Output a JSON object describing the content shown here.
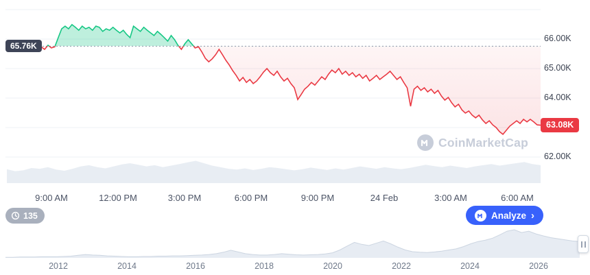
{
  "price_chart": {
    "baseline_badge": "65.76K",
    "current_badge": "63.08K",
    "y_axis_labels": [
      "66.00K",
      "65.00K",
      "64.00K",
      "62.00K"
    ],
    "x_axis_labels": [
      "9:00 AM",
      "12:00 PM",
      "3:00 PM",
      "6:00 PM",
      "9:00 PM",
      "24 Feb",
      "3:00 AM",
      "6:00 AM"
    ],
    "watermark_text": "CoinMarketCap"
  },
  "controls": {
    "history_badge_count": "135",
    "analyze_button_label": "Analyze"
  },
  "range_selector": {
    "year_labels": [
      "2012",
      "2014",
      "2016",
      "2018",
      "2020",
      "2022",
      "2024",
      "2026"
    ]
  },
  "colors": {
    "gain_green": "#16c784",
    "loss_red": "#ea3943",
    "analyze_blue": "#3861fb",
    "baseline_badge_bg": "#3e4457",
    "grid_line": "#eef1f6",
    "volume_fill": "#e8edf3",
    "timeline_fill": "#e7ecf3",
    "timeline_stroke": "#ccd5e1",
    "dotted_line": "#8b95a8"
  },
  "chart_data": [
    {
      "type": "line",
      "name": "price-24h",
      "title": "",
      "x_tick_labels": [
        "9:00 AM",
        "12:00 PM",
        "3:00 PM",
        "6:00 PM",
        "9:00 PM",
        "24 Feb",
        "3:00 AM",
        "6:00 AM"
      ],
      "y_gridlines": [
        67,
        66,
        65,
        64,
        63,
        62
      ],
      "y_tick_labels_visible": [
        "66.00K",
        "65.00K",
        "64.00K",
        "62.00K"
      ],
      "ylim": [
        61.85,
        67.15
      ],
      "baseline_value": 65.76,
      "last_value": 63.08,
      "grid": "horizontal",
      "legend": "off",
      "values_unit": "thousand USD",
      "values": [
        65.7,
        65.74,
        65.65,
        65.79,
        65.7,
        65.74,
        66.05,
        66.35,
        66.44,
        66.35,
        66.49,
        66.4,
        66.3,
        66.44,
        66.35,
        66.4,
        66.3,
        66.44,
        66.4,
        66.26,
        66.35,
        66.3,
        66.4,
        66.3,
        66.21,
        66.3,
        66.16,
        66.05,
        66.44,
        66.35,
        66.26,
        66.4,
        66.3,
        66.21,
        66.12,
        66.26,
        66.16,
        66.05,
        65.93,
        66.12,
        65.98,
        65.79,
        65.65,
        65.84,
        65.98,
        65.84,
        65.7,
        65.74,
        65.56,
        65.35,
        65.23,
        65.33,
        65.47,
        65.65,
        65.47,
        65.28,
        65.12,
        64.93,
        64.77,
        64.58,
        64.7,
        64.53,
        64.63,
        64.49,
        64.58,
        64.72,
        64.88,
        65.0,
        64.86,
        64.77,
        64.91,
        64.72,
        64.58,
        64.67,
        64.49,
        64.35,
        63.95,
        64.12,
        64.3,
        64.4,
        64.53,
        64.44,
        64.58,
        64.72,
        64.63,
        64.81,
        64.95,
        64.86,
        65.0,
        64.81,
        64.91,
        64.77,
        64.86,
        64.72,
        64.81,
        64.67,
        64.77,
        64.58,
        64.67,
        64.77,
        64.63,
        64.72,
        64.81,
        64.91,
        64.77,
        64.63,
        64.72,
        64.53,
        64.35,
        63.72,
        64.3,
        64.4,
        64.26,
        64.35,
        64.21,
        64.3,
        64.16,
        64.26,
        64.07,
        63.93,
        64.02,
        63.84,
        63.7,
        63.79,
        63.6,
        63.49,
        63.56,
        63.42,
        63.33,
        63.42,
        63.26,
        63.14,
        63.23,
        63.09,
        63.0,
        62.86,
        62.77,
        62.91,
        63.05,
        63.14,
        63.23,
        63.14,
        63.28,
        63.19,
        63.28,
        63.19,
        63.09,
        63.08
      ]
    },
    {
      "type": "area",
      "name": "volume",
      "values_normalized": [
        0.35,
        0.3,
        0.32,
        0.38,
        0.36,
        0.4,
        0.34,
        0.31,
        0.36,
        0.42,
        0.45,
        0.4,
        0.37,
        0.42,
        0.47,
        0.5,
        0.46,
        0.42,
        0.45,
        0.4,
        0.44,
        0.48,
        0.52,
        0.56,
        0.5,
        0.44,
        0.4,
        0.36,
        0.34,
        0.37,
        0.33,
        0.36,
        0.4,
        0.38,
        0.35,
        0.32,
        0.35,
        0.39,
        0.36,
        0.33,
        0.37,
        0.34,
        0.38,
        0.42,
        0.39,
        0.36,
        0.4,
        0.37,
        0.35,
        0.38,
        0.42,
        0.46,
        0.43,
        0.4,
        0.44,
        0.41,
        0.38,
        0.42,
        0.45,
        0.48,
        0.44,
        0.47,
        0.5,
        0.53,
        0.48,
        0.45
      ]
    },
    {
      "type": "area",
      "name": "range-selector-history",
      "x_tick_labels": [
        "2012",
        "2014",
        "2016",
        "2018",
        "2020",
        "2022",
        "2024",
        "2026"
      ],
      "values_normalized": [
        0.02,
        0.02,
        0.03,
        0.03,
        0.03,
        0.04,
        0.04,
        0.04,
        0.05,
        0.06,
        0.09,
        0.12,
        0.1,
        0.09,
        0.07,
        0.06,
        0.05,
        0.04,
        0.04,
        0.05,
        0.05,
        0.06,
        0.06,
        0.07,
        0.07,
        0.08,
        0.09,
        0.1,
        0.12,
        0.15,
        0.2,
        0.27,
        0.21,
        0.15,
        0.12,
        0.1,
        0.1,
        0.12,
        0.15,
        0.13,
        0.11,
        0.1,
        0.11,
        0.12,
        0.14,
        0.18,
        0.28,
        0.42,
        0.55,
        0.48,
        0.44,
        0.52,
        0.6,
        0.5,
        0.38,
        0.28,
        0.22,
        0.2,
        0.19,
        0.21,
        0.24,
        0.28,
        0.32,
        0.4,
        0.5,
        0.58,
        0.63,
        0.7,
        0.82,
        0.95,
        1.0,
        0.9,
        0.95,
        0.85,
        0.78,
        0.72,
        0.68,
        0.64,
        0.6,
        0.58
      ]
    }
  ]
}
